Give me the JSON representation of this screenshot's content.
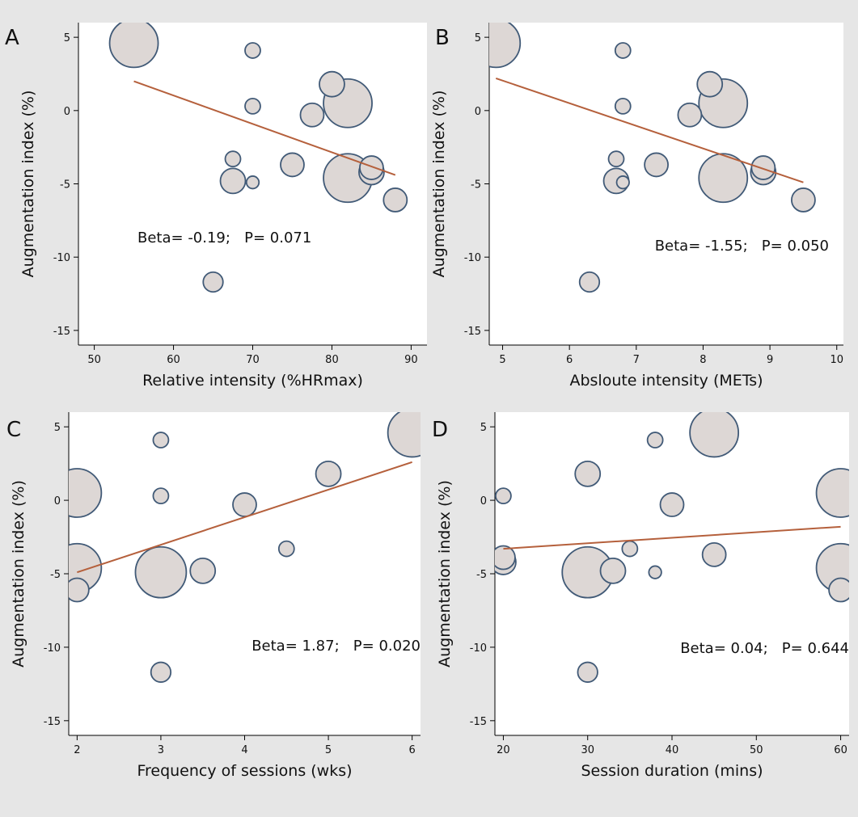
{
  "chart_data": [
    {
      "type": "scatter",
      "panel_label": "A",
      "xlabel": "Relative intensity  (%HRmax)",
      "ylabel": "Augmentation index (%)",
      "xlim": [
        48,
        92
      ],
      "ylim": [
        -16,
        6
      ],
      "xticks": [
        50,
        60,
        70,
        80,
        90
      ],
      "yticks": [
        5,
        0,
        -5,
        -10,
        -15
      ],
      "annotation": "Beta= -0.19;   P= 0.071",
      "fit_line": [
        [
          55,
          2.0
        ],
        [
          88,
          -4.4
        ]
      ],
      "points": [
        {
          "x": 55,
          "y": 4.6,
          "size": 3
        },
        {
          "x": 70,
          "y": 4.1,
          "size": 0.3
        },
        {
          "x": 80,
          "y": 1.8,
          "size": 0.8
        },
        {
          "x": 82,
          "y": 0.5,
          "size": 3
        },
        {
          "x": 70,
          "y": 0.3,
          "size": 0.3
        },
        {
          "x": 77.5,
          "y": -0.3,
          "size": 0.7
        },
        {
          "x": 67.5,
          "y": -3.3,
          "size": 0.3
        },
        {
          "x": 75,
          "y": -3.7,
          "size": 0.7
        },
        {
          "x": 85,
          "y": -3.9,
          "size": 0.7
        },
        {
          "x": 85,
          "y": -4.2,
          "size": 0.8
        },
        {
          "x": 82,
          "y": -4.6,
          "size": 3
        },
        {
          "x": 67.5,
          "y": -4.8,
          "size": 0.8
        },
        {
          "x": 70,
          "y": -4.9,
          "size": 0.2
        },
        {
          "x": 88,
          "y": -6.1,
          "size": 0.7
        },
        {
          "x": 65,
          "y": -11.7,
          "size": 0.5
        }
      ]
    },
    {
      "type": "scatter",
      "panel_label": "B",
      "xlabel": "Absloute intensity (METs)",
      "ylabel": "Augmentation index (%)",
      "xlim": [
        4.8,
        10.1
      ],
      "ylim": [
        -16,
        6
      ],
      "xticks": [
        5,
        6,
        7,
        8,
        9,
        10
      ],
      "yticks": [
        5,
        0,
        -5,
        -10,
        -15
      ],
      "annotation": "Beta= -1.55;   P= 0.050",
      "fit_line": [
        [
          4.9,
          2.2
        ],
        [
          9.5,
          -4.9
        ]
      ],
      "points": [
        {
          "x": 4.9,
          "y": 4.6,
          "size": 3
        },
        {
          "x": 6.8,
          "y": 4.1,
          "size": 0.3
        },
        {
          "x": 8.1,
          "y": 1.8,
          "size": 0.8
        },
        {
          "x": 8.3,
          "y": 0.5,
          "size": 3
        },
        {
          "x": 6.8,
          "y": 0.3,
          "size": 0.3
        },
        {
          "x": 7.8,
          "y": -0.3,
          "size": 0.7
        },
        {
          "x": 6.7,
          "y": -3.3,
          "size": 0.3
        },
        {
          "x": 7.3,
          "y": -3.7,
          "size": 0.7
        },
        {
          "x": 8.9,
          "y": -3.9,
          "size": 0.7
        },
        {
          "x": 8.9,
          "y": -4.2,
          "size": 0.8
        },
        {
          "x": 8.3,
          "y": -4.6,
          "size": 3
        },
        {
          "x": 6.7,
          "y": -4.8,
          "size": 0.8
        },
        {
          "x": 6.8,
          "y": -4.9,
          "size": 0.2
        },
        {
          "x": 9.5,
          "y": -6.1,
          "size": 0.7
        },
        {
          "x": 6.3,
          "y": -11.7,
          "size": 0.5
        }
      ]
    },
    {
      "type": "scatter",
      "panel_label": "C",
      "xlabel": "Frequency of sessions (wks)",
      "ylabel": "Augmentation index (%)",
      "xlim": [
        1.9,
        6.1
      ],
      "ylim": [
        -16,
        6
      ],
      "xticks": [
        2,
        3,
        4,
        5,
        6
      ],
      "yticks": [
        5,
        0,
        -5,
        -10,
        -15
      ],
      "annotation": "Beta= 1.87;   P= 0.020",
      "fit_line": [
        [
          2,
          -4.9
        ],
        [
          6,
          2.6
        ]
      ],
      "points": [
        {
          "x": 6,
          "y": 4.6,
          "size": 3
        },
        {
          "x": 3,
          "y": 4.1,
          "size": 0.3
        },
        {
          "x": 5,
          "y": 1.8,
          "size": 0.8
        },
        {
          "x": 2,
          "y": 0.5,
          "size": 3
        },
        {
          "x": 3,
          "y": 0.3,
          "size": 0.3
        },
        {
          "x": 4,
          "y": -0.3,
          "size": 0.7
        },
        {
          "x": 4.5,
          "y": -3.3,
          "size": 0.3
        },
        {
          "x": 2,
          "y": -4.6,
          "size": 3
        },
        {
          "x": 3.5,
          "y": -4.8,
          "size": 0.8
        },
        {
          "x": 3,
          "y": -4.9,
          "size": 3.3
        },
        {
          "x": 2,
          "y": -6.1,
          "size": 0.7
        },
        {
          "x": 3,
          "y": -11.7,
          "size": 0.5
        }
      ]
    },
    {
      "type": "scatter",
      "panel_label": "D",
      "xlabel": "Session duration (mins)",
      "ylabel": "Augmentation index (%)",
      "xlim": [
        19,
        61
      ],
      "ylim": [
        -16,
        6
      ],
      "xticks": [
        20,
        30,
        40,
        50,
        60
      ],
      "yticks": [
        5,
        0,
        -5,
        -10,
        -15
      ],
      "annotation": "Beta= 0.04;   P= 0.644",
      "fit_line": [
        [
          20,
          -3.3
        ],
        [
          60,
          -1.8
        ]
      ],
      "points": [
        {
          "x": 45,
          "y": 4.6,
          "size": 3
        },
        {
          "x": 38,
          "y": 4.1,
          "size": 0.3
        },
        {
          "x": 30,
          "y": 1.8,
          "size": 0.8
        },
        {
          "x": 60,
          "y": 0.5,
          "size": 3
        },
        {
          "x": 20,
          "y": 0.3,
          "size": 0.3
        },
        {
          "x": 40,
          "y": -0.3,
          "size": 0.7
        },
        {
          "x": 35,
          "y": -3.3,
          "size": 0.3
        },
        {
          "x": 45,
          "y": -3.7,
          "size": 0.7
        },
        {
          "x": 20,
          "y": -3.9,
          "size": 0.7
        },
        {
          "x": 20,
          "y": -4.2,
          "size": 0.8
        },
        {
          "x": 60,
          "y": -4.6,
          "size": 3
        },
        {
          "x": 33,
          "y": -4.8,
          "size": 0.8
        },
        {
          "x": 38,
          "y": -4.9,
          "size": 0.2
        },
        {
          "x": 30,
          "y": -4.9,
          "size": 3.3
        },
        {
          "x": 60,
          "y": -6.1,
          "size": 0.7
        },
        {
          "x": 30,
          "y": -11.7,
          "size": 0.5
        }
      ]
    }
  ],
  "colors": {
    "background": "#e6e6e6",
    "plot_area": "#ffffff",
    "marker_fill": "#ddd7d5",
    "marker_stroke": "#415a77",
    "fit_line": "#b5603c"
  }
}
